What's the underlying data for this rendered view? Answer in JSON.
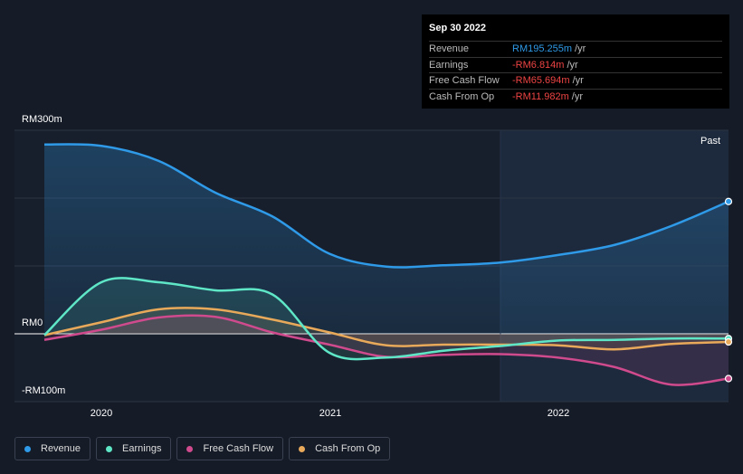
{
  "tooltip": {
    "date": "Sep 30 2022",
    "rows": [
      {
        "name": "Revenue",
        "value": "RM195.255m",
        "unit": "/yr",
        "color": "#2f9ae8"
      },
      {
        "name": "Earnings",
        "value": "-RM6.814m",
        "unit": "/yr",
        "color": "#ef4444"
      },
      {
        "name": "Free Cash Flow",
        "value": "-RM65.694m",
        "unit": "/yr",
        "color": "#ef4444"
      },
      {
        "name": "Cash From Op",
        "value": "-RM11.982m",
        "unit": "/yr",
        "color": "#ef4444"
      }
    ]
  },
  "past_label": "Past",
  "legend": [
    {
      "label": "Revenue",
      "color": "#2f9ae8"
    },
    {
      "label": "Earnings",
      "color": "#5ee6c7"
    },
    {
      "label": "Free Cash Flow",
      "color": "#d04a8e"
    },
    {
      "label": "Cash From Op",
      "color": "#e8a95a"
    }
  ],
  "chart_data": {
    "type": "line",
    "ylabels": [
      "RM300m",
      "RM0",
      "-RM100m"
    ],
    "xlabels": [
      "2020",
      "2021",
      "2022"
    ],
    "ylim": [
      -100,
      300
    ],
    "xlim": [
      2019.7,
      2022.75
    ],
    "series": [
      {
        "name": "Revenue",
        "color": "#2f9ae8",
        "x": [
          2019.75,
          2020.0,
          2020.25,
          2020.5,
          2020.75,
          2021.0,
          2021.25,
          2021.5,
          2021.75,
          2022.0,
          2022.25,
          2022.5,
          2022.75
        ],
        "y": [
          279,
          277,
          255,
          208,
          173,
          118,
          99,
          101,
          105,
          116,
          131,
          159,
          195
        ]
      },
      {
        "name": "Earnings",
        "color": "#5ee6c7",
        "x": [
          2019.75,
          2020.0,
          2020.25,
          2020.5,
          2020.75,
          2021.0,
          2021.25,
          2021.5,
          2021.75,
          2022.0,
          2022.25,
          2022.5,
          2022.75
        ],
        "y": [
          -2,
          76,
          76,
          64,
          58,
          -28,
          -35,
          -25,
          -18,
          -10,
          -9,
          -7,
          -7
        ]
      },
      {
        "name": "Free Cash Flow",
        "color": "#d04a8e",
        "x": [
          2019.75,
          2020.0,
          2020.25,
          2020.5,
          2020.75,
          2021.0,
          2021.25,
          2021.5,
          2021.75,
          2022.0,
          2022.25,
          2022.5,
          2022.75
        ],
        "y": [
          -9,
          6,
          24,
          25,
          2,
          -16,
          -34,
          -31,
          -30,
          -35,
          -49,
          -75,
          -66
        ]
      },
      {
        "name": "Cash From Op",
        "color": "#e8a95a",
        "x": [
          2019.75,
          2020.0,
          2020.25,
          2020.5,
          2020.75,
          2021.0,
          2021.25,
          2021.5,
          2021.75,
          2022.0,
          2022.25,
          2022.5,
          2022.75
        ],
        "y": [
          -2,
          17,
          36,
          36,
          21,
          2,
          -17,
          -16,
          -16,
          -17,
          -23,
          -15,
          -12
        ]
      }
    ]
  }
}
